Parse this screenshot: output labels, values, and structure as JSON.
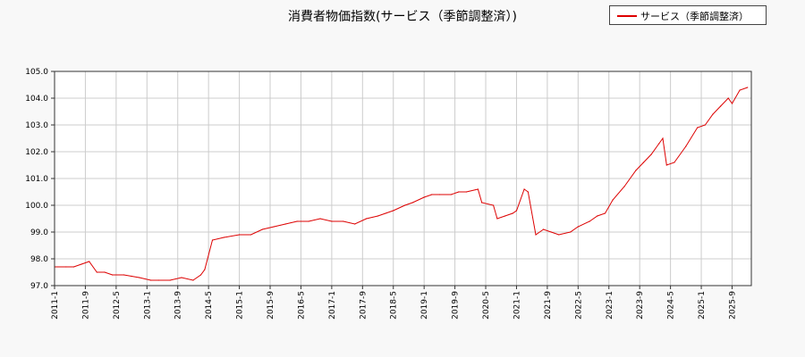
{
  "chart_data": {
    "type": "line",
    "title": "消費者物価指数(サービス（季節調整済）)",
    "xlabel": "",
    "ylabel": "",
    "ylim": [
      97.0,
      105.0
    ],
    "yticks": [
      "97.0",
      "98.0",
      "99.0",
      "100.0",
      "101.0",
      "102.0",
      "103.0",
      "104.0",
      "105.0"
    ],
    "xticks": [
      "2011-1",
      "2011-9",
      "2012-5",
      "2013-1",
      "2013-9",
      "2014-5",
      "2015-1",
      "2015-9",
      "2016-5",
      "2017-1",
      "2017-9",
      "2018-5",
      "2019-1",
      "2019-9",
      "2020-5",
      "2021-1",
      "2021-9",
      "2022-5",
      "2023-1",
      "2023-9",
      "2024-5",
      "2025-1",
      "2025-9"
    ],
    "grid": true,
    "legend_position": "top-right",
    "series": [
      {
        "name": "サービス（季節調整済）",
        "color": "#dd0000",
        "x": [
          "2011-1",
          "2011-4",
          "2011-6",
          "2011-8",
          "2011-10",
          "2011-12",
          "2012-2",
          "2012-4",
          "2012-7",
          "2012-9",
          "2012-11",
          "2013-2",
          "2013-4",
          "2013-7",
          "2013-10",
          "2014-1",
          "2014-3",
          "2014-4",
          "2014-6",
          "2014-9",
          "2015-1",
          "2015-4",
          "2015-7",
          "2015-10",
          "2016-1",
          "2016-4",
          "2016-7",
          "2016-10",
          "2017-1",
          "2017-4",
          "2017-7",
          "2017-10",
          "2018-1",
          "2018-3",
          "2018-5",
          "2018-8",
          "2018-10",
          "2019-1",
          "2019-3",
          "2019-5",
          "2019-8",
          "2019-10",
          "2019-12",
          "2020-3",
          "2020-4",
          "2020-7",
          "2020-8",
          "2020-10",
          "2020-12",
          "2021-1",
          "2021-3",
          "2021-4",
          "2021-6",
          "2021-8",
          "2021-10",
          "2021-12",
          "2022-3",
          "2022-5",
          "2022-8",
          "2022-10",
          "2022-12",
          "2023-2",
          "2023-5",
          "2023-8",
          "2023-10",
          "2023-12",
          "2024-2",
          "2024-3",
          "2024-4",
          "2024-6",
          "2024-9",
          "2024-12",
          "2025-2",
          "2025-4",
          "2025-6",
          "2025-8",
          "2025-9",
          "2025-11",
          "2026-1"
        ],
        "values": [
          97.7,
          97.7,
          97.7,
          97.8,
          97.9,
          97.5,
          97.5,
          97.4,
          97.4,
          97.35,
          97.3,
          97.2,
          97.2,
          97.2,
          97.3,
          97.2,
          97.4,
          97.6,
          98.7,
          98.8,
          98.9,
          98.9,
          99.1,
          99.2,
          99.3,
          99.4,
          99.4,
          99.5,
          99.4,
          99.4,
          99.3,
          99.5,
          99.6,
          99.7,
          99.8,
          100.0,
          100.1,
          100.3,
          100.4,
          100.4,
          100.4,
          100.5,
          100.5,
          100.6,
          100.1,
          100.0,
          99.5,
          99.6,
          99.7,
          99.8,
          100.6,
          100.5,
          98.9,
          99.1,
          99.0,
          98.9,
          99.0,
          99.2,
          99.4,
          99.6,
          99.7,
          100.2,
          100.7,
          101.3,
          101.6,
          101.9,
          102.3,
          102.5,
          101.5,
          101.6,
          102.2,
          102.9,
          103.0,
          103.4,
          103.7,
          104.0,
          103.8,
          104.3,
          104.4
        ]
      }
    ]
  }
}
